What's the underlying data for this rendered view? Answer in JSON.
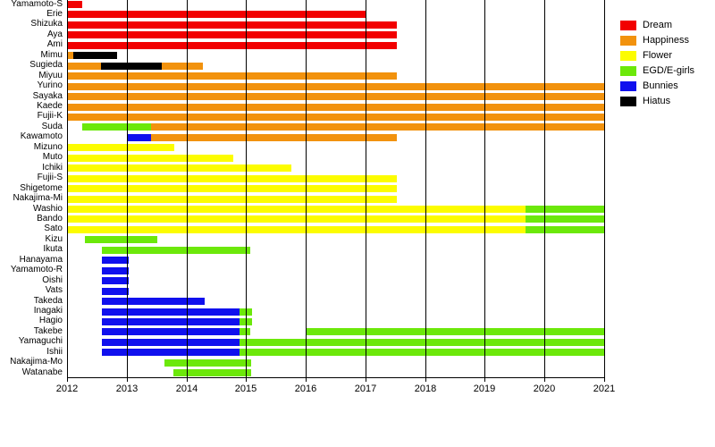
{
  "page": {
    "background": "#ffffff"
  },
  "chart_data": {
    "type": "gantt",
    "title": "",
    "x_axis": {
      "min": 2012,
      "max": 2021,
      "tick_labels": [
        "2012",
        "2013",
        "2014",
        "2015",
        "2016",
        "2017",
        "2018",
        "2019",
        "2020",
        "2021"
      ],
      "grid": true
    },
    "legend": {
      "position": "top-right",
      "entries": [
        {
          "id": "dream",
          "label": "Dream",
          "color": "#f20000"
        },
        {
          "id": "happiness",
          "label": "Happiness",
          "color": "#f2920d"
        },
        {
          "id": "flower",
          "label": "Flower",
          "color": "#fcfc00"
        },
        {
          "id": "egd",
          "label": "EGD/E-girls",
          "color": "#6ce80a"
        },
        {
          "id": "bunnies",
          "label": "Bunnies",
          "color": "#1010ee"
        },
        {
          "id": "hiatus",
          "label": "Hiatus",
          "color": "#000000"
        }
      ]
    },
    "members": [
      {
        "name": "Yamamoto-S",
        "segments": [
          {
            "group": "dream",
            "start": 2012.0,
            "end": 2012.26
          }
        ]
      },
      {
        "name": "Erie",
        "segments": [
          {
            "group": "dream",
            "start": 2012.0,
            "end": 2017.0
          }
        ]
      },
      {
        "name": "Shizuka",
        "segments": [
          {
            "group": "dream",
            "start": 2012.0,
            "end": 2017.53
          }
        ]
      },
      {
        "name": "Aya",
        "segments": [
          {
            "group": "dream",
            "start": 2012.0,
            "end": 2017.53
          }
        ]
      },
      {
        "name": "Ami",
        "segments": [
          {
            "group": "dream",
            "start": 2012.0,
            "end": 2017.53
          }
        ]
      },
      {
        "name": "Mimu",
        "segments": [
          {
            "group": "happiness",
            "start": 2012.0,
            "end": 2012.1
          },
          {
            "group": "hiatus",
            "start": 2012.1,
            "end": 2012.84
          }
        ]
      },
      {
        "name": "Sugieda",
        "segments": [
          {
            "group": "happiness",
            "start": 2012.0,
            "end": 2012.57
          },
          {
            "group": "hiatus",
            "start": 2012.57,
            "end": 2013.59
          },
          {
            "group": "happiness",
            "start": 2013.59,
            "end": 2014.28
          }
        ]
      },
      {
        "name": "Miyuu",
        "segments": [
          {
            "group": "happiness",
            "start": 2012.0,
            "end": 2017.53
          }
        ]
      },
      {
        "name": "Yurino",
        "segments": [
          {
            "group": "happiness",
            "start": 2012.0,
            "end": 2021.0
          }
        ]
      },
      {
        "name": "Sayaka",
        "segments": [
          {
            "group": "happiness",
            "start": 2012.0,
            "end": 2021.0
          }
        ]
      },
      {
        "name": "Kaede",
        "segments": [
          {
            "group": "happiness",
            "start": 2012.0,
            "end": 2021.0
          }
        ]
      },
      {
        "name": "Fujii-K",
        "segments": [
          {
            "group": "happiness",
            "start": 2012.0,
            "end": 2021.0
          }
        ]
      },
      {
        "name": "Suda",
        "segments": [
          {
            "group": "egd",
            "start": 2012.25,
            "end": 2013.41
          },
          {
            "group": "happiness",
            "start": 2013.41,
            "end": 2021.0
          }
        ]
      },
      {
        "name": "Kawamoto",
        "segments": [
          {
            "group": "bunnies",
            "start": 2013.02,
            "end": 2013.41
          },
          {
            "group": "happiness",
            "start": 2013.41,
            "end": 2017.53
          }
        ]
      },
      {
        "name": "Mizuno",
        "segments": [
          {
            "group": "flower",
            "start": 2012.0,
            "end": 2013.8
          }
        ]
      },
      {
        "name": "Muto",
        "segments": [
          {
            "group": "flower",
            "start": 2012.0,
            "end": 2014.78
          }
        ]
      },
      {
        "name": "Ichiki",
        "segments": [
          {
            "group": "flower",
            "start": 2012.0,
            "end": 2015.76
          }
        ]
      },
      {
        "name": "Fujii-S",
        "segments": [
          {
            "group": "flower",
            "start": 2012.0,
            "end": 2017.53
          }
        ]
      },
      {
        "name": "Shigetome",
        "segments": [
          {
            "group": "flower",
            "start": 2012.0,
            "end": 2017.53
          }
        ]
      },
      {
        "name": "Nakajima-Mi",
        "segments": [
          {
            "group": "flower",
            "start": 2012.0,
            "end": 2017.53
          }
        ]
      },
      {
        "name": "Washio",
        "segments": [
          {
            "group": "flower",
            "start": 2012.0,
            "end": 2019.68
          },
          {
            "group": "egd",
            "start": 2019.68,
            "end": 2021.0
          }
        ]
      },
      {
        "name": "Bando",
        "segments": [
          {
            "group": "flower",
            "start": 2012.0,
            "end": 2019.68
          },
          {
            "group": "egd",
            "start": 2019.68,
            "end": 2021.0
          }
        ]
      },
      {
        "name": "Sato",
        "segments": [
          {
            "group": "flower",
            "start": 2012.0,
            "end": 2019.68
          },
          {
            "group": "egd",
            "start": 2019.68,
            "end": 2021.0
          }
        ]
      },
      {
        "name": "Kizu",
        "segments": [
          {
            "group": "egd",
            "start": 2012.3,
            "end": 2013.51
          }
        ]
      },
      {
        "name": "Ikuta",
        "segments": [
          {
            "group": "egd",
            "start": 2012.58,
            "end": 2015.07
          }
        ]
      },
      {
        "name": "Hanayama",
        "segments": [
          {
            "group": "bunnies",
            "start": 2012.58,
            "end": 2013.03
          }
        ]
      },
      {
        "name": "Yamamoto-R",
        "segments": [
          {
            "group": "bunnies",
            "start": 2012.58,
            "end": 2013.03
          }
        ]
      },
      {
        "name": "Oishi",
        "segments": [
          {
            "group": "bunnies",
            "start": 2012.58,
            "end": 2013.03
          }
        ]
      },
      {
        "name": "Vats",
        "segments": [
          {
            "group": "bunnies",
            "start": 2012.58,
            "end": 2013.03
          }
        ]
      },
      {
        "name": "Takeda",
        "segments": [
          {
            "group": "bunnies",
            "start": 2012.58,
            "end": 2014.31
          }
        ]
      },
      {
        "name": "Inagaki",
        "segments": [
          {
            "group": "bunnies",
            "start": 2012.58,
            "end": 2014.89
          },
          {
            "group": "egd",
            "start": 2014.89,
            "end": 2015.1
          }
        ]
      },
      {
        "name": "Hagio",
        "segments": [
          {
            "group": "bunnies",
            "start": 2012.58,
            "end": 2014.89
          },
          {
            "group": "egd",
            "start": 2014.89,
            "end": 2015.1
          }
        ]
      },
      {
        "name": "Takebe",
        "segments": [
          {
            "group": "bunnies",
            "start": 2012.58,
            "end": 2014.89
          },
          {
            "group": "egd",
            "start": 2014.89,
            "end": 2015.07
          },
          {
            "group": "egd",
            "start": 2016.0,
            "end": 2021.0
          }
        ]
      },
      {
        "name": "Yamaguchi",
        "segments": [
          {
            "group": "bunnies",
            "start": 2012.58,
            "end": 2014.89
          },
          {
            "group": "egd",
            "start": 2014.89,
            "end": 2021.0
          }
        ]
      },
      {
        "name": "Ishii",
        "segments": [
          {
            "group": "bunnies",
            "start": 2012.58,
            "end": 2014.89
          },
          {
            "group": "egd",
            "start": 2014.89,
            "end": 2021.0
          }
        ]
      },
      {
        "name": "Nakajima-Mo",
        "segments": [
          {
            "group": "egd",
            "start": 2013.63,
            "end": 2015.08
          }
        ]
      },
      {
        "name": "Watanabe",
        "segments": [
          {
            "group": "egd",
            "start": 2013.78,
            "end": 2015.08
          }
        ]
      }
    ]
  }
}
